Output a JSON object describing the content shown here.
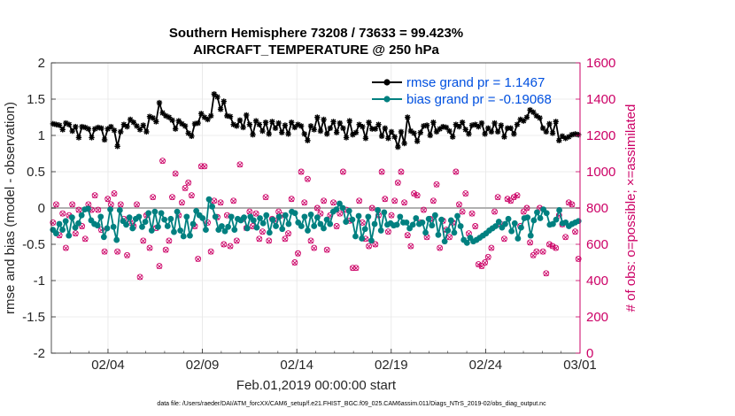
{
  "chart_data": {
    "type": "line",
    "title": "Southern Hemisphere 73208 / 73633 = 99.423%",
    "subtitle": "AIRCRAFT_TEMPERATURE @ 250 hPa",
    "xlabel": "Feb.01,2019 00:00:00 start",
    "ylabel": "rmse and bias (model - observation)",
    "ylabel_right": "# of obs: o=possible; ×=assimilated",
    "footer": "data file: /Users/raeder/DAI/ATM_forcXX/CAM6_setup/f.e21.FHIST_BGC.f09_025.CAM6assim.011/Diags_NTrS_2019-02/obs_diag_output.nc",
    "xlim": [
      0,
      28
    ],
    "ylim": [
      -2,
      2
    ],
    "ylim_right": [
      0,
      1600
    ],
    "grid": true,
    "x_ticks": [
      {
        "value": 3,
        "label": "02/04"
      },
      {
        "value": 8,
        "label": "02/09"
      },
      {
        "value": 13,
        "label": "02/14"
      },
      {
        "value": 18,
        "label": "02/19"
      },
      {
        "value": 23,
        "label": "02/24"
      },
      {
        "value": 28,
        "label": "03/01"
      }
    ],
    "y_ticks": [
      {
        "value": 2,
        "label": "2"
      },
      {
        "value": 1.5,
        "label": "1.5"
      },
      {
        "value": 1,
        "label": "1"
      },
      {
        "value": 0.5,
        "label": "0.5"
      },
      {
        "value": 0,
        "label": "0"
      },
      {
        "value": -0.5,
        "label": "-0.5"
      },
      {
        "value": -1,
        "label": "-1"
      },
      {
        "value": -1.5,
        "label": "-1.5"
      },
      {
        "value": -2,
        "label": "-2"
      }
    ],
    "y_ticks_right": [
      {
        "value": 1600,
        "label": "1600"
      },
      {
        "value": 1400,
        "label": "1400"
      },
      {
        "value": 1200,
        "label": "1200"
      },
      {
        "value": 1000,
        "label": "1000"
      },
      {
        "value": 800,
        "label": "800"
      },
      {
        "value": 600,
        "label": "600"
      },
      {
        "value": 400,
        "label": "400"
      },
      {
        "value": 200,
        "label": "200"
      },
      {
        "value": 0,
        "label": "0"
      }
    ],
    "colors": {
      "rmse": "#000000",
      "bias": "#008080",
      "obs": "#cc0066",
      "legend_text": "#0050e0",
      "zero_line": "#b0b0b0",
      "grid": "#e6e6e6"
    },
    "legend_position": "top-right",
    "series": [
      {
        "name": "rmse",
        "legend_label": "rmse grand pr = 1.1467",
        "values": [
          1.16,
          1.15,
          1.14,
          1.08,
          1.17,
          1.15,
          1.06,
          1.12,
          0.97,
          1.12,
          1.11,
          1.09,
          0.97,
          1.09,
          1.11,
          1.1,
          0.94,
          1.09,
          1.12,
          1.07,
          0.85,
          1.05,
          1.15,
          1.12,
          1.22,
          1.18,
          1.13,
          1.08,
          1.14,
          1.05,
          1.26,
          1.24,
          1.19,
          1.45,
          1.31,
          1.27,
          1.25,
          1.21,
          1.09,
          1.2,
          1.16,
          1.13,
          1.03,
          0.99,
          1.16,
          1.17,
          1.3,
          1.25,
          1.22,
          1.27,
          1.57,
          1.53,
          1.36,
          1.47,
          1.27,
          1.26,
          1.15,
          1.13,
          1.21,
          1.11,
          1.28,
          1.15,
          1.01,
          1.2,
          1.15,
          1.06,
          1.18,
          1.02,
          1.19,
          1.1,
          1.17,
          1.04,
          1.14,
          1.02,
          1.18,
          1.11,
          1.15,
          1.13,
          1.02,
          0.93,
          1.13,
          1.08,
          1.25,
          1.06,
          1.22,
          1.02,
          1.1,
          1.19,
          1.04,
          1.17,
          1.1,
          0.97,
          1.2,
          1.01,
          1.04,
          1.15,
          1.12,
          0.96,
          1.18,
          1.09,
          1.09,
          1.15,
          0.99,
          1.1,
          0.96,
          1.05,
          0.98,
          0.84,
          1.05,
          0.89,
          1.25,
          1.06,
          1.03,
          0.92,
          1.04,
          1.13,
          1.14,
          1.0,
          1.18,
          1.05,
          1.09,
          1.12,
          1.11,
          1.06,
          0.98,
          1.15,
          1.12,
          1.18,
          1.08,
          1.02,
          1.14,
          1.15,
          1.12,
          1.17,
          1.02,
          1.1,
          1.05,
          1.17,
          1.05,
          1.14,
          0.98,
          1.1,
          1.1,
          1.02,
          1.15,
          1.22,
          1.2,
          1.25,
          1.35,
          1.32,
          1.27,
          1.24,
          1.1,
          1.05,
          1.16,
          1.03,
          1.19,
          0.93,
          0.99,
          0.96,
          0.98,
          1.01,
          1.02,
          1.01
        ]
      },
      {
        "name": "bias",
        "legend_label": "bias grand pr = -0.19068",
        "values": [
          -0.3,
          -0.35,
          -0.22,
          -0.3,
          -0.18,
          -0.38,
          -0.13,
          -0.27,
          -0.21,
          -0.1,
          -0.02,
          -0.01,
          -0.17,
          -0.22,
          -0.24,
          -0.12,
          -0.4,
          -0.28,
          -0.02,
          -0.26,
          -0.44,
          -0.03,
          -0.18,
          -0.23,
          -0.13,
          -0.28,
          -0.15,
          -0.12,
          -0.26,
          -0.19,
          -0.07,
          -0.31,
          -0.05,
          -0.26,
          -0.07,
          -0.16,
          -0.25,
          -0.15,
          -0.33,
          -0.05,
          -0.31,
          -0.39,
          -0.12,
          -0.38,
          -0.22,
          -0.04,
          -0.1,
          -0.14,
          -0.3,
          0.12,
          0.02,
          -0.12,
          -0.3,
          -0.25,
          -0.32,
          -0.26,
          -0.12,
          -0.3,
          -0.15,
          -0.17,
          -0.13,
          -0.28,
          -0.12,
          -0.17,
          -0.27,
          -0.14,
          -0.21,
          -0.1,
          -0.34,
          -0.16,
          -0.25,
          -0.12,
          -0.29,
          -0.1,
          -0.22,
          -0.05,
          -0.07,
          -0.2,
          -0.25,
          -0.12,
          -0.31,
          -0.09,
          -0.25,
          -0.13,
          -0.22,
          -0.28,
          -0.16,
          -0.22,
          -0.05,
          -0.02,
          0.06,
          0.0,
          -0.19,
          -0.04,
          -0.16,
          -0.39,
          -0.11,
          -0.42,
          -0.29,
          -0.12,
          -0.45,
          -0.22,
          -0.03,
          -0.31,
          -0.06,
          -0.23,
          -0.21,
          -0.24,
          -0.23,
          -0.12,
          -0.2,
          -0.2,
          -0.28,
          -0.23,
          -0.14,
          -0.22,
          -0.2,
          -0.34,
          -0.15,
          -0.24,
          -0.1,
          -0.37,
          -0.16,
          -0.46,
          -0.31,
          -0.17,
          -0.34,
          -0.11,
          -0.25,
          -0.44,
          -0.48,
          -0.41,
          -0.46,
          -0.44,
          -0.41,
          -0.38,
          -0.35,
          -0.31,
          -0.28,
          -0.25,
          -0.19,
          -0.27,
          -0.22,
          -0.15,
          -0.32,
          -0.21,
          -0.42,
          -0.27,
          -0.14,
          -0.13,
          -0.38,
          -0.17,
          -0.06,
          -0.14,
          -0.02,
          -0.07,
          -0.23,
          -0.22,
          -0.16,
          -0.03,
          -0.21,
          -0.2,
          -0.25,
          -0.22,
          -0.2,
          -0.18
        ]
      },
      {
        "name": "obs_possible",
        "values": [
          720,
          820,
          650,
          770,
          580,
          760,
          820,
          660,
          790,
          700,
          630,
          820,
          790,
          870,
          790,
          680,
          560,
          850,
          820,
          880,
          560,
          820,
          740,
          540,
          720,
          700,
          820,
          420,
          620,
          760,
          580,
          860,
          690,
          480,
          1060,
          570,
          620,
          860,
          990,
          760,
          830,
          910,
          940,
          870,
          700,
          520,
          1030,
          1030,
          720,
          560,
          840,
          750,
          830,
          600,
          760,
          590,
          840,
          620,
          1040,
          740,
          690,
          780,
          700,
          770,
          630,
          670,
          860,
          620,
          740,
          730,
          780,
          760,
          630,
          660,
          850,
          500,
          550,
          1000,
          830,
          960,
          620,
          580,
          800,
          770,
          840,
          570,
          760,
          830,
          700,
          770,
          1000,
          790,
          730,
          470,
          470,
          840,
          720,
          630,
          590,
          800,
          600,
          760,
          1000,
          850,
          670,
          760,
          840,
          940,
          1000,
          830,
          650,
          590,
          880,
          870,
          720,
          790,
          640,
          740,
          840,
          930,
          580,
          730,
          680,
          640,
          720,
          1000,
          820,
          780,
          880,
          660,
          770,
          700,
          490,
          480,
          500,
          530,
          580,
          780,
          860,
          710,
          630,
          850,
          840,
          860,
          870,
          700,
          780,
          800,
          610,
          540,
          560,
          800,
          560,
          440,
          600,
          590,
          580,
          760,
          710,
          640,
          830,
          820,
          670,
          520
        ]
      },
      {
        "name": "obs_assimilated",
        "values": [
          718,
          818,
          648,
          768,
          578,
          758,
          818,
          658,
          788,
          698,
          628,
          818,
          788,
          868,
          788,
          678,
          558,
          848,
          818,
          878,
          558,
          818,
          738,
          538,
          718,
          698,
          818,
          418,
          618,
          758,
          578,
          858,
          688,
          478,
          1058,
          568,
          618,
          858,
          988,
          758,
          828,
          908,
          938,
          868,
          698,
          518,
          1028,
          1028,
          718,
          558,
          838,
          748,
          828,
          598,
          758,
          588,
          838,
          618,
          1038,
          738,
          688,
          778,
          698,
          768,
          628,
          668,
          858,
          618,
          738,
          728,
          778,
          758,
          628,
          658,
          848,
          498,
          548,
          998,
          828,
          958,
          618,
          578,
          798,
          768,
          838,
          568,
          758,
          828,
          698,
          768,
          998,
          788,
          728,
          468,
          468,
          838,
          718,
          628,
          588,
          798,
          598,
          758,
          998,
          848,
          668,
          758,
          838,
          938,
          998,
          828,
          648,
          588,
          878,
          868,
          718,
          788,
          638,
          738,
          838,
          928,
          578,
          728,
          678,
          638,
          718,
          998,
          818,
          778,
          878,
          658,
          768,
          698,
          488,
          478,
          498,
          528,
          578,
          778,
          858,
          708,
          628,
          848,
          838,
          858,
          868,
          698,
          778,
          798,
          608,
          538,
          558,
          798,
          558,
          438,
          598,
          588,
          578,
          758,
          708,
          638,
          828,
          818,
          668,
          518
        ]
      }
    ]
  }
}
